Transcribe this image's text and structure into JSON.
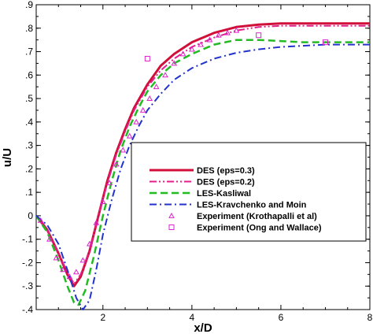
{
  "chart_data": {
    "type": "line",
    "xlabel": "x/D",
    "ylabel": "u/U",
    "xlim": [
      0.5,
      8
    ],
    "ylim": [
      -0.4,
      0.9
    ],
    "x_ticks": [
      2,
      4,
      6,
      8
    ],
    "y_ticks": [
      -0.4,
      -0.3,
      -0.2,
      -0.1,
      0,
      0.1,
      0.2,
      0.3,
      0.4,
      0.5,
      0.6,
      0.7,
      0.8,
      0.9
    ],
    "grid": false,
    "legend_position": "center-right",
    "series": [
      {
        "name": "DES (eps=0.3)",
        "style": "solid",
        "color": "#d0103a",
        "width": 3,
        "x": [
          0.5,
          0.75,
          1.0,
          1.2,
          1.35,
          1.5,
          1.7,
          1.9,
          2.1,
          2.3,
          2.5,
          2.7,
          3.0,
          3.3,
          3.6,
          4.0,
          4.5,
          5.0,
          5.5,
          6.0,
          6.5,
          7.0,
          7.5,
          8.0
        ],
        "y": [
          0.0,
          -0.06,
          -0.16,
          -0.25,
          -0.3,
          -0.26,
          -0.15,
          0.0,
          0.15,
          0.27,
          0.37,
          0.46,
          0.56,
          0.64,
          0.69,
          0.74,
          0.78,
          0.805,
          0.815,
          0.82,
          0.82,
          0.82,
          0.82,
          0.82
        ]
      },
      {
        "name": "DES (eps=0.2)",
        "style": "dashdotdot",
        "color": "#e0208a",
        "width": 2,
        "x": [
          0.5,
          0.75,
          1.0,
          1.2,
          1.35,
          1.5,
          1.7,
          1.9,
          2.1,
          2.3,
          2.5,
          2.7,
          3.0,
          3.3,
          3.6,
          4.0,
          4.5,
          5.0,
          5.5,
          6.0,
          6.5,
          7.0,
          7.5,
          8.0
        ],
        "y": [
          0.0,
          -0.06,
          -0.16,
          -0.24,
          -0.29,
          -0.25,
          -0.15,
          0.0,
          0.14,
          0.26,
          0.36,
          0.45,
          0.55,
          0.62,
          0.67,
          0.72,
          0.76,
          0.79,
          0.805,
          0.81,
          0.81,
          0.81,
          0.81,
          0.81
        ]
      },
      {
        "name": "LES-Kasliwal",
        "style": "dashed",
        "color": "#22bb22",
        "width": 2.5,
        "x": [
          0.5,
          0.75,
          1.0,
          1.2,
          1.35,
          1.45,
          1.6,
          1.8,
          2.0,
          2.2,
          2.4,
          2.6,
          2.8,
          3.0,
          3.3,
          3.6,
          4.0,
          4.5,
          5.0,
          5.5,
          6.0,
          6.5,
          7.0,
          7.5,
          8.0
        ],
        "y": [
          0.0,
          -0.07,
          -0.19,
          -0.3,
          -0.37,
          -0.38,
          -0.32,
          -0.17,
          0.0,
          0.15,
          0.28,
          0.38,
          0.46,
          0.53,
          0.6,
          0.65,
          0.69,
          0.73,
          0.75,
          0.75,
          0.745,
          0.74,
          0.74,
          0.74,
          0.74
        ]
      },
      {
        "name": "LES-Kravchenko and Moin",
        "style": "dashdot",
        "color": "#2233cc",
        "width": 2,
        "x": [
          0.5,
          0.75,
          1.0,
          1.2,
          1.4,
          1.55,
          1.7,
          1.85,
          2.0,
          2.2,
          2.4,
          2.6,
          2.8,
          3.0,
          3.3,
          3.6,
          4.0,
          4.5,
          5.0,
          5.5,
          6.0,
          6.5,
          7.0,
          7.5,
          8.0
        ],
        "y": [
          0.0,
          -0.04,
          -0.12,
          -0.23,
          -0.35,
          -0.4,
          -0.36,
          -0.23,
          -0.08,
          0.07,
          0.2,
          0.3,
          0.38,
          0.45,
          0.52,
          0.58,
          0.63,
          0.67,
          0.695,
          0.71,
          0.72,
          0.725,
          0.73,
          0.73,
          0.73
        ]
      },
      {
        "name": "Experiment (Krothapalli et al)",
        "style": "marker",
        "marker": "triangle",
        "color": "#dd22cc",
        "x": [
          0.6,
          0.8,
          0.95,
          1.1,
          1.25,
          1.4,
          1.55,
          1.7,
          1.85,
          2.0,
          2.15,
          2.3,
          2.45,
          2.6,
          2.75,
          2.9,
          3.05,
          3.2,
          3.4,
          3.6,
          3.8,
          4.0,
          4.2,
          4.4,
          4.6,
          4.8,
          5.0
        ],
        "y": [
          -0.02,
          -0.1,
          -0.18,
          -0.23,
          -0.26,
          -0.24,
          -0.19,
          -0.12,
          -0.03,
          0.06,
          0.14,
          0.22,
          0.28,
          0.34,
          0.4,
          0.45,
          0.5,
          0.55,
          0.6,
          0.65,
          0.69,
          0.71,
          0.73,
          0.75,
          0.77,
          0.78,
          0.79
        ]
      },
      {
        "name": "Experiment (Ong and Wallace)",
        "style": "marker",
        "marker": "square",
        "color": "#dd22cc",
        "x": [
          3.0,
          5.5,
          7.0
        ],
        "y": [
          0.67,
          0.77,
          0.74
        ]
      }
    ]
  }
}
